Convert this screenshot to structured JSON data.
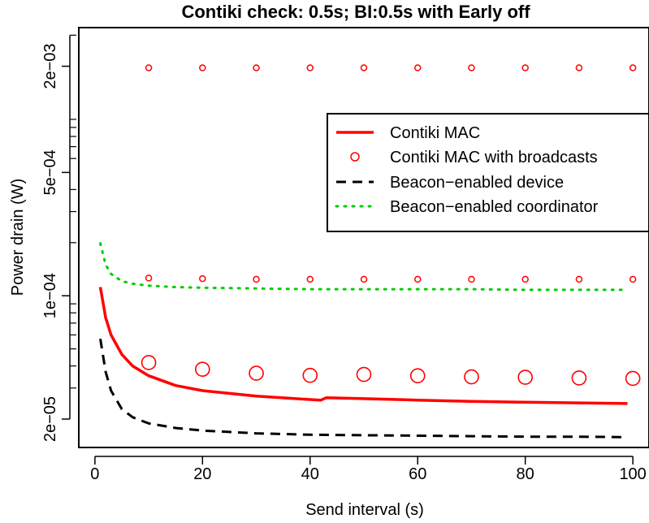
{
  "chart_data": {
    "type": "line",
    "title": "Contiki check: 0.5s; BI:0.5s with Early off",
    "xlabel": "Send interval (s)",
    "ylabel": "Power drain (W)",
    "xlim": [
      -3,
      103
    ],
    "ylim_log10": [
      -4.86,
      -2.48
    ],
    "y_scale": "log",
    "x_ticks": [
      0,
      20,
      40,
      60,
      80,
      100
    ],
    "x_tick_labels": [
      "0",
      "20",
      "40",
      "60",
      "80",
      "100"
    ],
    "y_ticks": [
      2e-05,
      0.0001,
      0.0005,
      0.002
    ],
    "y_tick_labels": [
      "2e−05",
      "1e−04",
      "5e−04",
      "2e−03"
    ],
    "legend_position": "right",
    "colors": {
      "red": "#ff0000",
      "black": "#000000",
      "green": "#00cd00"
    },
    "series": [
      {
        "name": "Contiki MAC",
        "style": "solid-line",
        "color": "#ff0000",
        "x": [
          1,
          2,
          3,
          5,
          7,
          10,
          15,
          20,
          30,
          40,
          42,
          43,
          50,
          60,
          70,
          80,
          90,
          99
        ],
        "y": [
          0.000112,
          7.5e-05,
          6e-05,
          4.65e-05,
          4e-05,
          3.52e-05,
          3.1e-05,
          2.9e-05,
          2.7e-05,
          2.58e-05,
          2.56e-05,
          2.64e-05,
          2.61e-05,
          2.56e-05,
          2.52e-05,
          2.49e-05,
          2.47e-05,
          2.45e-05
        ]
      },
      {
        "name": "Contiki MAC with broadcasts",
        "style": "circles",
        "color": "#ff0000",
        "groups": [
          {
            "x": [
              10,
              20,
              30,
              40,
              50,
              60,
              70,
              80,
              90,
              100
            ],
            "y": [
              0.00196,
              0.00196,
              0.00196,
              0.00196,
              0.00196,
              0.00196,
              0.00196,
              0.00196,
              0.00196,
              0.00196
            ],
            "size": "small"
          },
          {
            "x": [
              10,
              20,
              30,
              40,
              50,
              60,
              70,
              80,
              90,
              100
            ],
            "y": [
              0.000126,
              0.000125,
              0.000124,
              0.000124,
              0.000124,
              0.000124,
              0.000124,
              0.000124,
              0.000124,
              0.000124
            ],
            "size": "small"
          },
          {
            "x": [
              10,
              20,
              30,
              40,
              50,
              60,
              70,
              80,
              90,
              100
            ],
            "y": [
              4.18e-05,
              3.83e-05,
              3.64e-05,
              3.54e-05,
              3.58e-05,
              3.52e-05,
              3.47e-05,
              3.45e-05,
              3.42e-05,
              3.4e-05
            ],
            "size": "large"
          }
        ]
      },
      {
        "name": "Beacon−enabled device",
        "style": "dashed-line",
        "color": "#000000",
        "x": [
          1,
          2,
          3,
          5,
          7,
          10,
          15,
          20,
          30,
          40,
          50,
          60,
          70,
          80,
          90,
          99
        ],
        "y": [
          5.7e-05,
          3.7e-05,
          2.9e-05,
          2.28e-05,
          2.05e-05,
          1.89e-05,
          1.78e-05,
          1.72e-05,
          1.66e-05,
          1.63e-05,
          1.62e-05,
          1.61e-05,
          1.6e-05,
          1.59e-05,
          1.59e-05,
          1.58e-05
        ]
      },
      {
        "name": "Beacon−enabled coordinator",
        "style": "dotted-line",
        "color": "#00cd00",
        "x": [
          1,
          2,
          3,
          5,
          7,
          10,
          15,
          20,
          30,
          40,
          50,
          60,
          70,
          80,
          90,
          99
        ],
        "y": [
          0.000198,
          0.00015,
          0.000133,
          0.000121,
          0.000117,
          0.000114,
          0.000112,
          0.000111,
          0.00011,
          0.000109,
          0.000109,
          0.000109,
          0.000109,
          0.000108,
          0.000108,
          0.000108
        ]
      }
    ]
  }
}
